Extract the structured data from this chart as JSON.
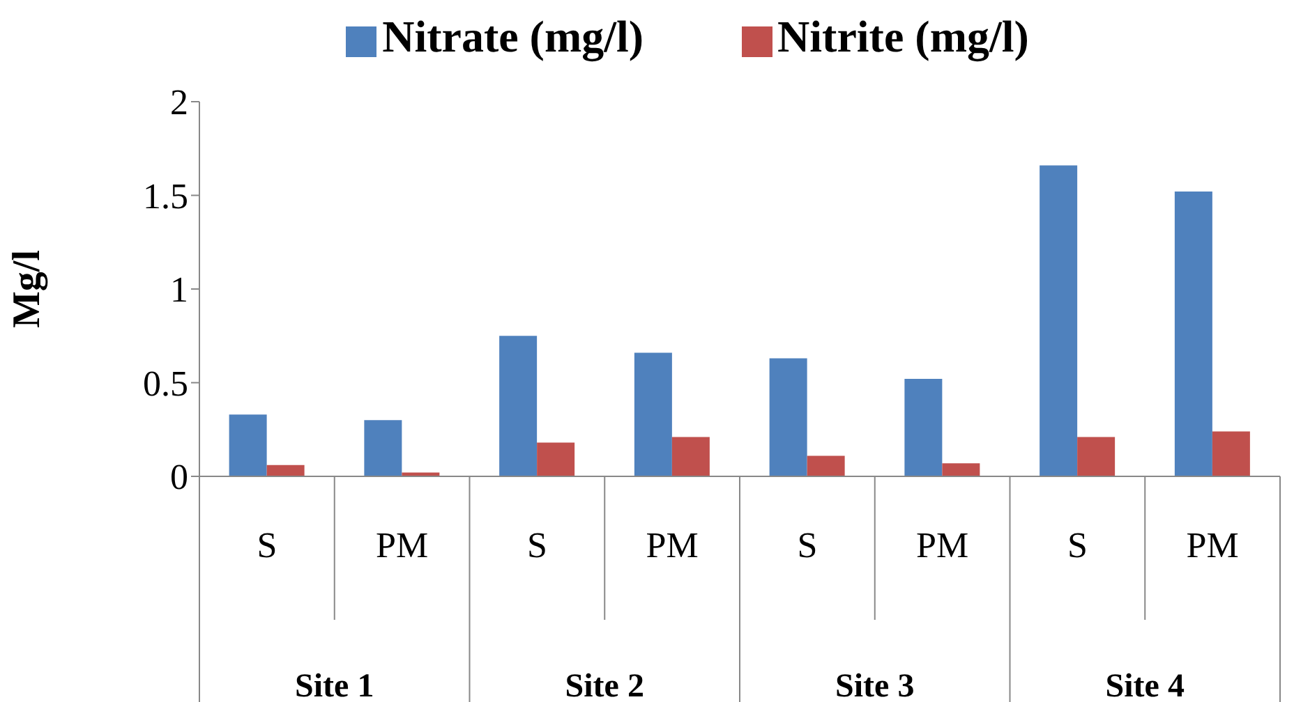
{
  "chart_data": {
    "type": "bar",
    "ylabel": "Mg/l",
    "categories": [
      "S",
      "PM",
      "S",
      "PM",
      "S",
      "PM",
      "S",
      "PM"
    ],
    "series": [
      {
        "name": "Nitrate (mg/l)",
        "color": "#4f81bd",
        "values": [
          0.33,
          0.3,
          0.75,
          0.66,
          0.63,
          0.52,
          1.66,
          1.52
        ]
      },
      {
        "name": "Nitrite (mg/l)",
        "color": "#c0504d",
        "values": [
          0.06,
          0.02,
          0.18,
          0.21,
          0.11,
          0.07,
          0.21,
          0.24
        ]
      }
    ],
    "ylim": [
      0,
      2
    ],
    "yticks": [
      0,
      0.5,
      1,
      1.5,
      2
    ],
    "legend": "top",
    "grid": false,
    "annotations": [
      "Site 1",
      "Site 2",
      "Site 3",
      "Site 4"
    ]
  }
}
